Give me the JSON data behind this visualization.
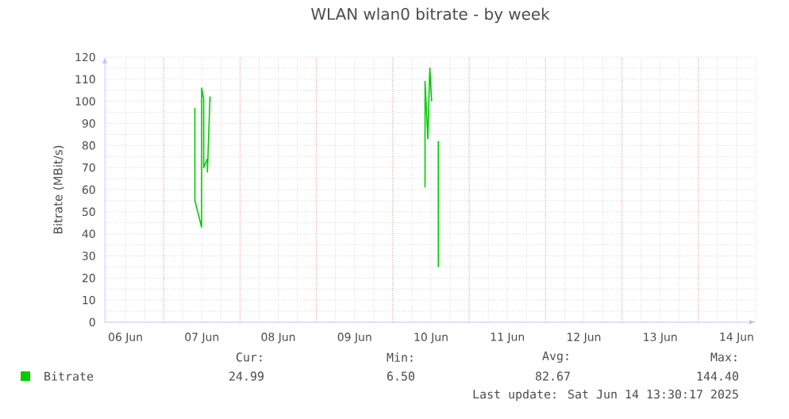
{
  "chart_data": {
    "type": "line",
    "title": "WLAN wlan0 bitrate - by week",
    "ylabel": "Bitrate (MBit/s)",
    "x": [
      "2025-06-07T09:48",
      "2025-06-07T09:49",
      "2025-06-07T11:55",
      "2025-06-07T11:56",
      "2025-06-07T12:34",
      "2025-06-07T12:35",
      "2025-06-07T13:44",
      "2025-06-07T13:45",
      "2025-06-07T14:33",
      "2025-06-07T14:34",
      "2025-06-08T00:00",
      "2025-06-10T10:07",
      "2025-06-10T10:08",
      "2025-06-10T11:00",
      "2025-06-10T11:37",
      "2025-06-10T12:12",
      "2025-06-10T13:00",
      "2025-06-10T14:17",
      "2025-06-10T14:18"
    ],
    "series": [
      {
        "name": "Bitrate",
        "color": "#00cc00",
        "values": [
          97,
          55,
          43,
          106,
          101,
          70,
          74,
          68,
          102,
          100,
          null,
          61,
          109,
          83,
          115,
          100,
          null,
          82,
          25
        ]
      }
    ],
    "xlim": [
      "2025-06-06T05:30",
      "2025-06-14T18:00"
    ],
    "xticks": [
      {
        "value": "2025-06-06T12:00",
        "label": "06 Jun"
      },
      {
        "value": "2025-06-07T12:00",
        "label": "07 Jun"
      },
      {
        "value": "2025-06-08T12:00",
        "label": "08 Jun"
      },
      {
        "value": "2025-06-09T12:00",
        "label": "09 Jun"
      },
      {
        "value": "2025-06-10T12:00",
        "label": "10 Jun"
      },
      {
        "value": "2025-06-11T12:00",
        "label": "11 Jun"
      },
      {
        "value": "2025-06-12T12:00",
        "label": "12 Jun"
      },
      {
        "value": "2025-06-13T12:00",
        "label": "13 Jun"
      },
      {
        "value": "2025-06-14T12:00",
        "label": "14 Jun"
      },
      {
        "value": "2025-06-07T00:00",
        "label": null
      },
      {
        "value": "2025-06-08T00:00",
        "label": null
      },
      {
        "value": "2025-06-09T00:00",
        "label": null
      },
      {
        "value": "2025-06-10T00:00",
        "label": null
      },
      {
        "value": "2025-06-11T00:00",
        "label": null
      },
      {
        "value": "2025-06-12T00:00",
        "label": null
      },
      {
        "value": "2025-06-13T00:00",
        "label": null
      },
      {
        "value": "2025-06-14T00:00",
        "label": null
      }
    ],
    "ylim": [
      0,
      120
    ],
    "yticks": [
      0,
      10,
      20,
      30,
      40,
      50,
      60,
      70,
      80,
      90,
      100,
      110,
      120
    ],
    "grid": true,
    "legend": "bottom",
    "marker": "none",
    "line_style": "solid",
    "annotations": [
      "Cur:",
      "24.99",
      "Min:",
      "6.50",
      "Avg:",
      "82.67",
      "Max:",
      "144.40",
      "Last update: Sat Jun 14 13:30:17 2025"
    ]
  }
}
